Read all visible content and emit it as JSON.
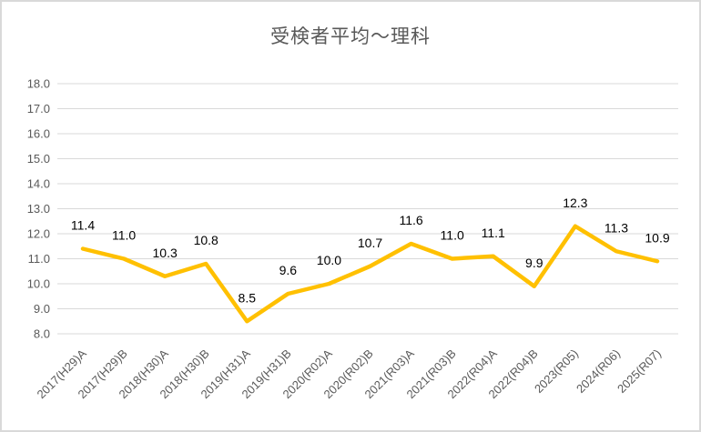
{
  "chart_data": {
    "type": "line",
    "title": "受検者平均～理科",
    "categories": [
      "2017(H29)A",
      "2017(H29)B",
      "2018(H30)A",
      "2018(H30)B",
      "2019(H31)A",
      "2019(H31)B",
      "2020(R02)A",
      "2020(R02)B",
      "2021(R03)A",
      "2021(R03)B",
      "2022(R04)A",
      "2022(R04)B",
      "2023(R05)",
      "2024(R06)",
      "2025(R07)"
    ],
    "values": [
      11.4,
      11.0,
      10.3,
      10.8,
      8.5,
      9.6,
      10.0,
      10.7,
      11.6,
      11.0,
      11.1,
      9.9,
      12.3,
      11.3,
      10.9
    ],
    "data_labels": [
      "11.4",
      "11.0",
      "10.3",
      "10.8",
      "8.5",
      "9.6",
      "10.0",
      "10.7",
      "11.6",
      "11.0",
      "11.1",
      "9.9",
      "12.3",
      "11.3",
      "10.9"
    ],
    "ylim": [
      8.0,
      18.0
    ],
    "ytick_step": 1.0,
    "ytick_labels": [
      "8.0",
      "9.0",
      "10.0",
      "11.0",
      "12.0",
      "13.0",
      "14.0",
      "15.0",
      "16.0",
      "17.0",
      "18.0"
    ],
    "grid": true,
    "legend_position": "none",
    "show_data_labels": true,
    "colors": {
      "line": "#FFC000",
      "gridline": "#D9D9D9",
      "border": "#D9D9D9",
      "title_text": "#595959",
      "axis_text": "#595959",
      "data_label_text": "#000000",
      "background": "#FFFFFF"
    }
  }
}
